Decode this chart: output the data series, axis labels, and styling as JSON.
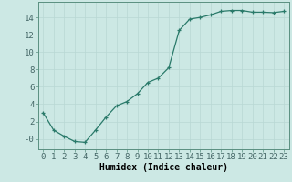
{
  "x": [
    0,
    1,
    2,
    3,
    4,
    5,
    6,
    7,
    8,
    9,
    10,
    11,
    12,
    13,
    14,
    15,
    16,
    17,
    18,
    19,
    20,
    21,
    22,
    23
  ],
  "y": [
    3.0,
    1.0,
    0.3,
    -0.3,
    -0.4,
    1.0,
    2.5,
    3.8,
    4.3,
    5.2,
    6.5,
    7.0,
    8.2,
    12.5,
    13.8,
    14.0,
    14.3,
    14.7,
    14.8,
    14.8,
    14.6,
    14.6,
    14.55,
    14.7
  ],
  "line_color": "#2a7a6a",
  "marker": "+",
  "marker_size": 3,
  "bg_color": "#cce8e4",
  "grid_color": "#b8d8d4",
  "xlabel": "Humidex (Indice chaleur)",
  "xlim": [
    -0.5,
    23.5
  ],
  "ylim": [
    -1.2,
    15.8
  ],
  "yticks": [
    0,
    2,
    4,
    6,
    8,
    10,
    12,
    14
  ],
  "ytick_labels": [
    "-0",
    "2",
    "4",
    "6",
    "8",
    "10",
    "12",
    "14"
  ],
  "xticks": [
    0,
    1,
    2,
    3,
    4,
    5,
    6,
    7,
    8,
    9,
    10,
    11,
    12,
    13,
    14,
    15,
    16,
    17,
    18,
    19,
    20,
    21,
    22,
    23
  ],
  "label_fontsize": 7,
  "tick_fontsize": 6.5,
  "spine_color": "#5a9080",
  "tick_color": "#446666"
}
